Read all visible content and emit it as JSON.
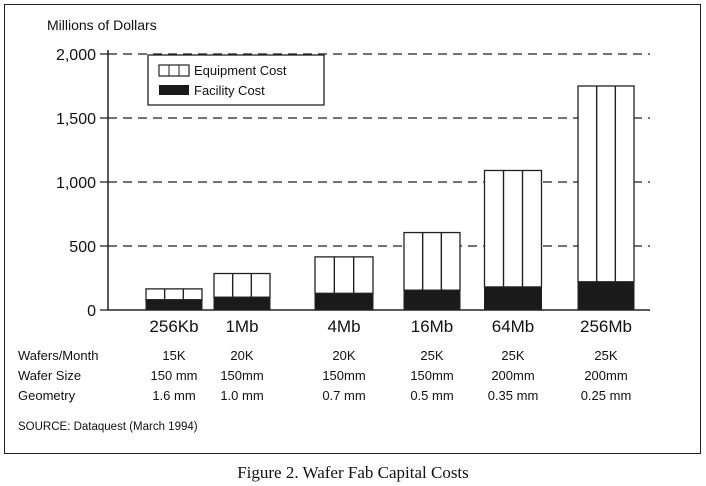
{
  "chart_data": {
    "type": "bar",
    "stacked": true,
    "ylabel": "Millions of Dollars",
    "ylim": [
      0,
      2000
    ],
    "yticks": [
      "0",
      "500",
      "1,000",
      "1,500",
      "2,000"
    ],
    "ytick_values": [
      0,
      500,
      1000,
      1500,
      2000
    ],
    "grid": "dashed at 500, 1,000, 1,500, 2,000",
    "categories": [
      "256Kb",
      "1Mb",
      "4Mb",
      "16Mb",
      "64Mb",
      "256Mb"
    ],
    "series": [
      {
        "name": "Facility Cost",
        "values": [
          80,
          100,
          130,
          155,
          180,
          220
        ],
        "color": "#1a1a1a"
      },
      {
        "name": "Equipment Cost",
        "values": [
          85,
          185,
          285,
          450,
          910,
          1530
        ],
        "color": "#ffffff"
      }
    ],
    "totals": [
      165,
      285,
      415,
      605,
      1090,
      1750
    ],
    "legend": {
      "position": "top-left",
      "entries": [
        "Equipment Cost",
        "Facility Cost"
      ]
    },
    "table": {
      "rows": [
        {
          "label": "Wafers/Month",
          "values": [
            "15K",
            "20K",
            "20K",
            "25K",
            "25K",
            "25K"
          ]
        },
        {
          "label": "Wafer Size",
          "values": [
            "150 mm",
            "150mm",
            "150mm",
            "150mm",
            "200mm",
            "200mm"
          ]
        },
        {
          "label": "Geometry",
          "values": [
            "1.6 mm",
            "1.0 mm",
            "0.7 mm",
            "0.5 mm",
            "0.35 mm",
            "0.25 mm"
          ]
        }
      ]
    },
    "source": "SOURCE: Dataquest (March 1994)"
  },
  "caption": "Figure 2. Wafer Fab Capital Costs"
}
